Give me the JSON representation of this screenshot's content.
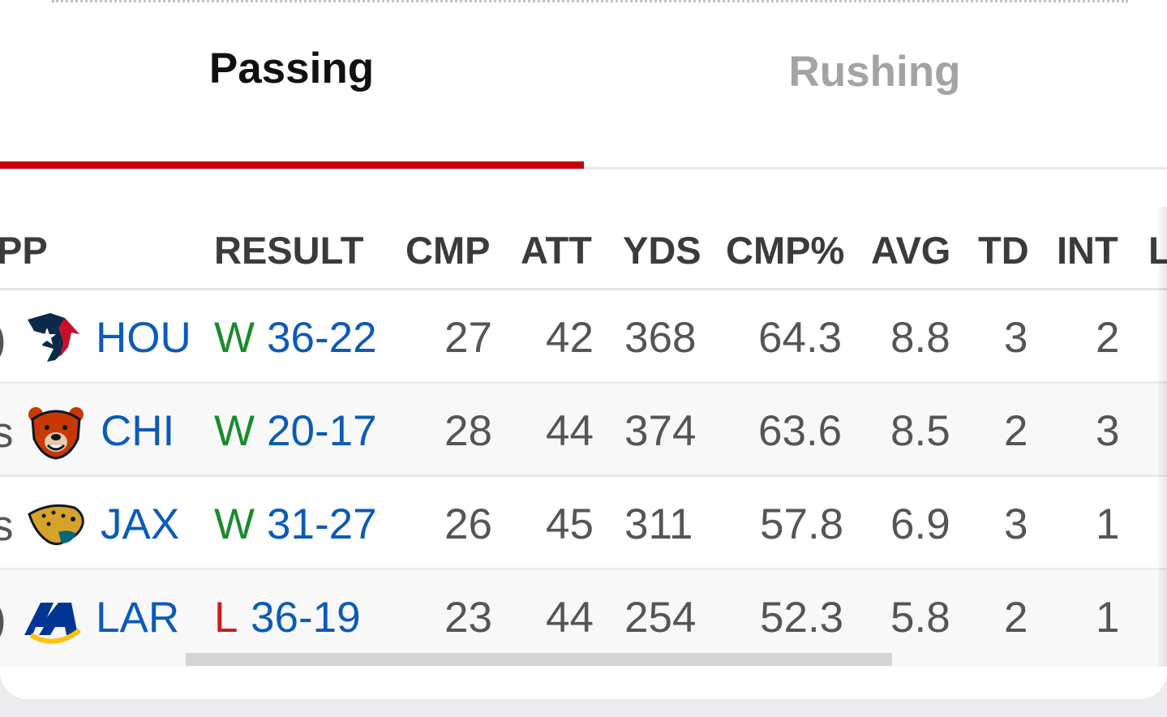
{
  "tabs": {
    "passing": "Passing",
    "rushing": "Rushing"
  },
  "headers": {
    "opp": "PP",
    "result": "RESULT",
    "cmp": "CMP",
    "att": "ATT",
    "yds": "YDS",
    "cmp_pct": "CMP%",
    "avg": "AVG",
    "td": "TD",
    "int": "INT",
    "next": "L"
  },
  "rows": [
    {
      "edge": ")",
      "team": "HOU",
      "wl": "W",
      "score": "36-22",
      "cmp": "27",
      "att": "42",
      "yds": "368",
      "cmp_pct": "64.3",
      "avg": "8.8",
      "td": "3",
      "int": "2"
    },
    {
      "edge": "s",
      "team": "CHI",
      "wl": "W",
      "score": "20-17",
      "cmp": "28",
      "att": "44",
      "yds": "374",
      "cmp_pct": "63.6",
      "avg": "8.5",
      "td": "2",
      "int": "3"
    },
    {
      "edge": "s",
      "team": "JAX",
      "wl": "W",
      "score": "31-27",
      "cmp": "26",
      "att": "45",
      "yds": "311",
      "cmp_pct": "57.8",
      "avg": "6.9",
      "td": "3",
      "int": "1"
    },
    {
      "edge": ")",
      "team": "LAR",
      "wl": "L",
      "score": "36-19",
      "cmp": "23",
      "att": "44",
      "yds": "254",
      "cmp_pct": "52.3",
      "avg": "5.8",
      "td": "2",
      "int": "1"
    }
  ],
  "icons": [
    "texans-logo-icon",
    "bears-logo-icon",
    "jaguars-logo-icon",
    "rams-logo-icon"
  ],
  "colors": {
    "accent": "#c8000e",
    "win": "#1b8a2e",
    "loss": "#cc1b1b",
    "link": "#0b5bb8"
  }
}
